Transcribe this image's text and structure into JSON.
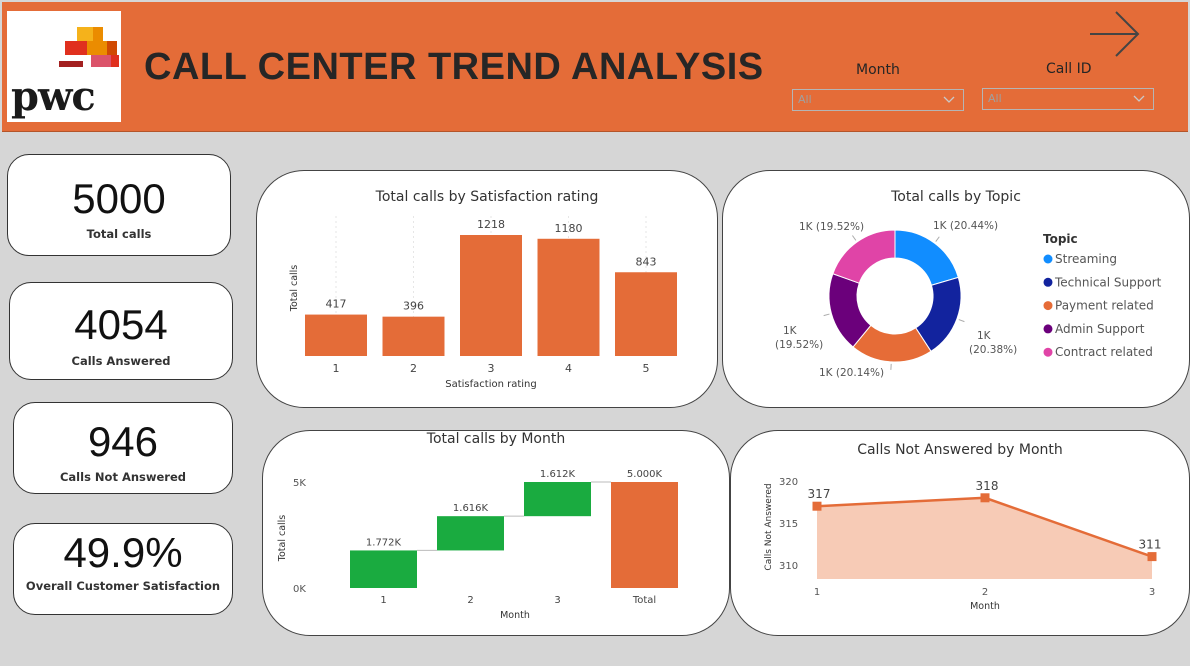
{
  "header": {
    "title": "CALL CENTER TREND ANALYSIS",
    "logo_text": "pwc",
    "accent": "#e46c38"
  },
  "filters": {
    "month": {
      "label": "Month",
      "value": "All"
    },
    "call_id": {
      "label": "Call ID",
      "value": "All"
    }
  },
  "nav": {
    "icon": "arrow-right-icon"
  },
  "kpis": [
    {
      "value": "5000",
      "label": "Total calls"
    },
    {
      "value": "4054",
      "label": "Calls Answered"
    },
    {
      "value": "946",
      "label": "Calls Not Answered"
    },
    {
      "value": "49.9%",
      "label": "Overall Customer Satisfaction"
    }
  ],
  "chart_data": [
    {
      "type": "bar",
      "title": "Total calls by Satisfaction rating",
      "xlabel": "Satisfaction rating",
      "ylabel": "Total calls",
      "categories": [
        "1",
        "2",
        "3",
        "4",
        "5"
      ],
      "values": [
        417,
        396,
        1218,
        1180,
        843
      ],
      "data_labels": [
        "417",
        "396",
        "1218",
        "1180",
        "843"
      ],
      "color": "#e46c38"
    },
    {
      "type": "pie",
      "title": "Total calls by Topic",
      "legend_title": "Topic",
      "categories": [
        "Streaming",
        "Technical Support",
        "Payment related",
        "Admin Support",
        "Contract related"
      ],
      "values": [
        20.44,
        20.38,
        20.14,
        19.52,
        19.52
      ],
      "data_labels": [
        "1K (20.44%)",
        "1K (20.38%)",
        "1K (20.14%)",
        "1K (19.52%)",
        "1K (19.52%)"
      ],
      "colors": [
        "#118dff",
        "#12239e",
        "#e66c37",
        "#6b007b",
        "#e044a7"
      ]
    },
    {
      "type": "bar",
      "subtype": "waterfall",
      "title": "Total calls by Month",
      "xlabel": "Month",
      "ylabel": "Total calls",
      "y_ticks": [
        "5K",
        "0K"
      ],
      "categories": [
        "1",
        "2",
        "3",
        "Total"
      ],
      "values": [
        1772,
        1616,
        1612,
        5000
      ],
      "data_labels": [
        "1.772K",
        "1.616K",
        "1.612K",
        "5.000K"
      ],
      "colors": {
        "increase": "#1aab40",
        "total": "#e46c38"
      }
    },
    {
      "type": "area",
      "title": "Calls Not Answered by Month",
      "xlabel": "Month",
      "ylabel": "Calls Not Answered",
      "x": [
        "1",
        "2",
        "3"
      ],
      "values": [
        317,
        318,
        311
      ],
      "data_labels": [
        "317",
        "318",
        "311"
      ],
      "y_ticks": [
        "320",
        "315",
        "310"
      ],
      "color": "#e46c38",
      "fill": "#f7cbb6"
    }
  ]
}
